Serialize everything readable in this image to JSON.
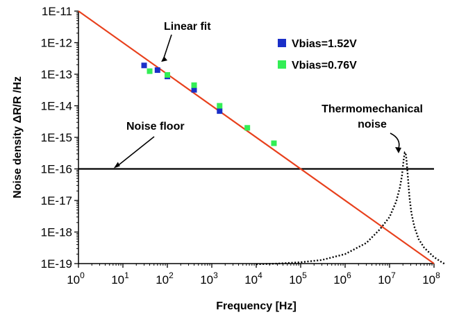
{
  "chart_data": {
    "type": "scatter",
    "xlabel": "Frequency [Hz]",
    "ylabel": "Noise density ΔR/R /Hz",
    "x_scale": "log",
    "y_scale": "log",
    "xlim": [
      1,
      100000000
    ],
    "ylim": [
      1e-19,
      1e-11
    ],
    "x_ticks": [
      {
        "value": 1,
        "base": "10",
        "exp": "0"
      },
      {
        "value": 10,
        "base": "10",
        "exp": "1"
      },
      {
        "value": 100,
        "base": "10",
        "exp": "2"
      },
      {
        "value": 1000,
        "base": "10",
        "exp": "3"
      },
      {
        "value": 10000,
        "base": "10",
        "exp": "4"
      },
      {
        "value": 100000,
        "base": "10",
        "exp": "5"
      },
      {
        "value": 1000000,
        "base": "10",
        "exp": "6"
      },
      {
        "value": 10000000,
        "base": "10",
        "exp": "7"
      },
      {
        "value": 100000000,
        "base": "10",
        "exp": "8"
      }
    ],
    "y_ticks": [
      {
        "value": 1e-11,
        "label": "1E-11"
      },
      {
        "value": 1e-12,
        "label": "1E-12"
      },
      {
        "value": 1e-13,
        "label": "1E-13"
      },
      {
        "value": 1e-14,
        "label": "1E-14"
      },
      {
        "value": 1e-15,
        "label": "1E-15"
      },
      {
        "value": 1e-16,
        "label": "1E-16"
      },
      {
        "value": 1e-17,
        "label": "1E-17"
      },
      {
        "value": 1e-18,
        "label": "1E-18"
      },
      {
        "value": 1e-19,
        "label": "1E-19"
      }
    ],
    "grid": false,
    "legend_position": "top-right",
    "series": [
      {
        "name": "Vbias=1.52V",
        "color": "#1a2fc8",
        "marker": "square",
        "points": [
          {
            "x": 30,
            "y": 1.9e-13
          },
          {
            "x": 60,
            "y": 1.35e-13
          },
          {
            "x": 100,
            "y": 8.5e-14
          },
          {
            "x": 400,
            "y": 3.2e-14
          },
          {
            "x": 1500,
            "y": 6.8e-15
          }
        ]
      },
      {
        "name": "Vbias=0.76V",
        "color": "#33ee55",
        "marker": "square",
        "points": [
          {
            "x": 40,
            "y": 1.25e-13
          },
          {
            "x": 100,
            "y": 9.5e-14
          },
          {
            "x": 400,
            "y": 4.5e-14
          },
          {
            "x": 1500,
            "y": 1e-14
          },
          {
            "x": 6300,
            "y": 2e-15
          },
          {
            "x": 25000,
            "y": 6.5e-16
          }
        ]
      }
    ],
    "linear_fit": {
      "color": "#e8401c",
      "x": [
        1,
        100000000
      ],
      "y": [
        1e-11,
        1e-19
      ]
    },
    "noise_floor": {
      "color": "#000000",
      "y": 1e-16,
      "x": [
        1,
        100000000
      ]
    },
    "thermomechanical_noise": {
      "color": "#000000",
      "style": "dotted",
      "x": [
        10000,
        30000,
        100000,
        300000,
        1000000,
        3000000,
        6000000,
        10000000,
        14000000,
        17000000,
        19000000,
        20000000,
        21000000,
        22000000,
        23000000,
        24000000,
        26000000,
        28000000,
        31000000,
        36000000,
        45000000,
        60000000,
        100000000,
        150000000,
        180000000
      ],
      "y": [
        9.5e-20,
        1e-19,
        1.1e-19,
        1.3e-19,
        2e-19,
        4.5e-19,
        1.2e-18,
        3e-18,
        9e-18,
        2.5e-17,
        6e-17,
        1.2e-16,
        2.2e-16,
        3.3e-16,
        3.2e-16,
        2e-16,
        5e-17,
        1.3e-17,
        4e-18,
        1.5e-18,
        6e-19,
        3.2e-19,
        1.6e-19,
        1.1e-19,
        9.5e-20
      ]
    },
    "annotations": [
      {
        "text": "Linear fit",
        "x": 70,
        "y": 2.6e-13
      },
      {
        "text": "Noise floor",
        "x": 6,
        "y": 1e-16
      },
      {
        "text": "Thermomechanical",
        "x": 20000000,
        "y": 4e-16
      },
      {
        "text": "noise",
        "x": 20000000,
        "y": 4e-16
      }
    ]
  }
}
